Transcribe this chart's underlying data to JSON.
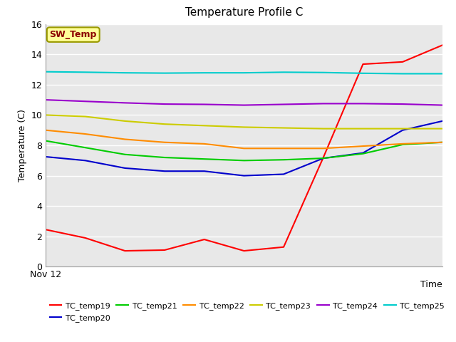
{
  "title": "Temperature Profile C",
  "xlabel": "Time",
  "ylabel": "Temperature (C)",
  "annotation": "SW_Temp",
  "annotation_color": "#8B0000",
  "annotation_bg": "#FFFF99",
  "annotation_border": "#999900",
  "ylim": [
    0,
    16
  ],
  "yticks": [
    0,
    2,
    4,
    6,
    8,
    10,
    12,
    14,
    16
  ],
  "x_start_label": "Nov 12",
  "background_color": "#E8E8E8",
  "series_order": [
    "TC_temp19",
    "TC_temp20",
    "TC_temp21",
    "TC_temp22",
    "TC_temp23",
    "TC_temp24",
    "TC_temp25"
  ],
  "series": {
    "TC_temp19": {
      "color": "#FF0000",
      "data": [
        2.45,
        1.9,
        1.05,
        1.1,
        1.8,
        1.05,
        1.3,
        7.2,
        13.35,
        13.5,
        14.6
      ]
    },
    "TC_temp20": {
      "color": "#0000CC",
      "data": [
        7.25,
        7.0,
        6.5,
        6.3,
        6.3,
        6.0,
        6.1,
        7.15,
        7.5,
        9.0,
        9.6
      ]
    },
    "TC_temp21": {
      "color": "#00CC00",
      "data": [
        8.3,
        7.85,
        7.4,
        7.2,
        7.1,
        7.0,
        7.05,
        7.15,
        7.45,
        8.05,
        8.2
      ]
    },
    "TC_temp22": {
      "color": "#FF8C00",
      "data": [
        9.0,
        8.75,
        8.4,
        8.2,
        8.1,
        7.8,
        7.8,
        7.8,
        7.95,
        8.1,
        8.2
      ]
    },
    "TC_temp23": {
      "color": "#CCCC00",
      "data": [
        10.0,
        9.9,
        9.6,
        9.4,
        9.3,
        9.2,
        9.15,
        9.1,
        9.1,
        9.1,
        9.1
      ]
    },
    "TC_temp24": {
      "color": "#9900CC",
      "data": [
        11.0,
        10.9,
        10.8,
        10.72,
        10.7,
        10.65,
        10.7,
        10.75,
        10.75,
        10.72,
        10.65
      ]
    },
    "TC_temp25": {
      "color": "#00CCCC",
      "data": [
        12.85,
        12.82,
        12.78,
        12.76,
        12.78,
        12.78,
        12.82,
        12.8,
        12.75,
        12.72,
        12.72
      ]
    }
  },
  "n_points": 11
}
